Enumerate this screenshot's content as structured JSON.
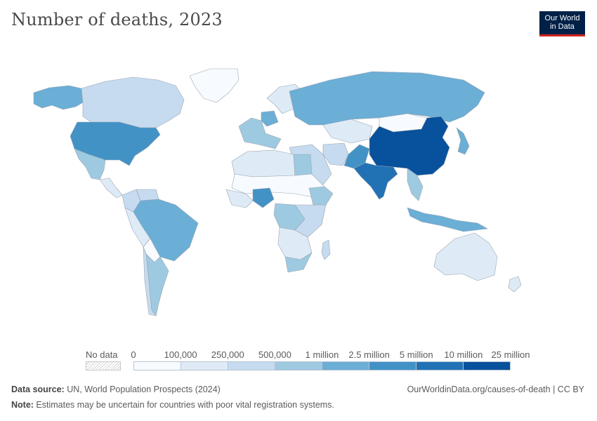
{
  "header": {
    "title": "Number of deaths, 2023",
    "logo_line1": "Our World",
    "logo_line2": "in Data"
  },
  "legend": {
    "no_data_label": "No data",
    "ticks": [
      "0",
      "100,000",
      "250,000",
      "500,000",
      "1 million",
      "2.5 million",
      "5 million",
      "10 million",
      "25 million"
    ],
    "colors": [
      "#f7fbff",
      "#deebf7",
      "#c6dbef",
      "#9ecae1",
      "#6baed6",
      "#4292c6",
      "#2171b5",
      "#08519c"
    ]
  },
  "footer": {
    "source_label": "Data source:",
    "source_text": " UN, World Population Prospects (2024)",
    "note_label": "Note:",
    "note_text": " Estimates may be uncertain for countries with poor vital registration systems.",
    "credit": "OurWorldinData.org/causes-of-death | CC BY"
  },
  "map_regions": [
    {
      "name": "Canada",
      "color": "#c6dbef"
    },
    {
      "name": "Alaska",
      "color": "#6baed6"
    },
    {
      "name": "Greenland",
      "color": "#f7fbff"
    },
    {
      "name": "United States",
      "color": "#4292c6"
    },
    {
      "name": "Mexico",
      "color": "#9ecae1"
    },
    {
      "name": "Central America",
      "color": "#deebf7"
    },
    {
      "name": "Colombia",
      "color": "#c6dbef"
    },
    {
      "name": "Venezuela",
      "color": "#c6dbef"
    },
    {
      "name": "Brazil",
      "color": "#6baed6"
    },
    {
      "name": "Peru",
      "color": "#deebf7"
    },
    {
      "name": "Bolivia",
      "color": "#f7fbff"
    },
    {
      "name": "Argentina",
      "color": "#9ecae1"
    },
    {
      "name": "Chile",
      "color": "#c6dbef"
    },
    {
      "name": "Western Europe",
      "color": "#9ecae1"
    },
    {
      "name": "Germany",
      "color": "#6baed6"
    },
    {
      "name": "Scandinavia",
      "color": "#deebf7"
    },
    {
      "name": "Russia",
      "color": "#6baed6"
    },
    {
      "name": "Kazakhstan",
      "color": "#deebf7"
    },
    {
      "name": "Middle East",
      "color": "#c6dbef"
    },
    {
      "name": "Iran",
      "color": "#c6dbef"
    },
    {
      "name": "Pakistan",
      "color": "#4292c6"
    },
    {
      "name": "India",
      "color": "#2171b5"
    },
    {
      "name": "China",
      "color": "#08519c"
    },
    {
      "name": "Mongolia",
      "color": "#f7fbff"
    },
    {
      "name": "Japan",
      "color": "#6baed6"
    },
    {
      "name": "Southeast Asia",
      "color": "#9ecae1"
    },
    {
      "name": "Indonesia",
      "color": "#6baed6"
    },
    {
      "name": "Australia",
      "color": "#deebf7"
    },
    {
      "name": "New Zealand",
      "color": "#deebf7"
    },
    {
      "name": "North Africa",
      "color": "#deebf7"
    },
    {
      "name": "Egypt",
      "color": "#9ecae1"
    },
    {
      "name": "Sahel",
      "color": "#f7fbff"
    },
    {
      "name": "West Africa",
      "color": "#deebf7"
    },
    {
      "name": "Nigeria",
      "color": "#4292c6"
    },
    {
      "name": "Ethiopia",
      "color": "#9ecae1"
    },
    {
      "name": "DR Congo",
      "color": "#9ecae1"
    },
    {
      "name": "East Africa",
      "color": "#c6dbef"
    },
    {
      "name": "Southern Africa",
      "color": "#deebf7"
    },
    {
      "name": "South Africa",
      "color": "#9ecae1"
    },
    {
      "name": "Madagascar",
      "color": "#c6dbef"
    }
  ]
}
